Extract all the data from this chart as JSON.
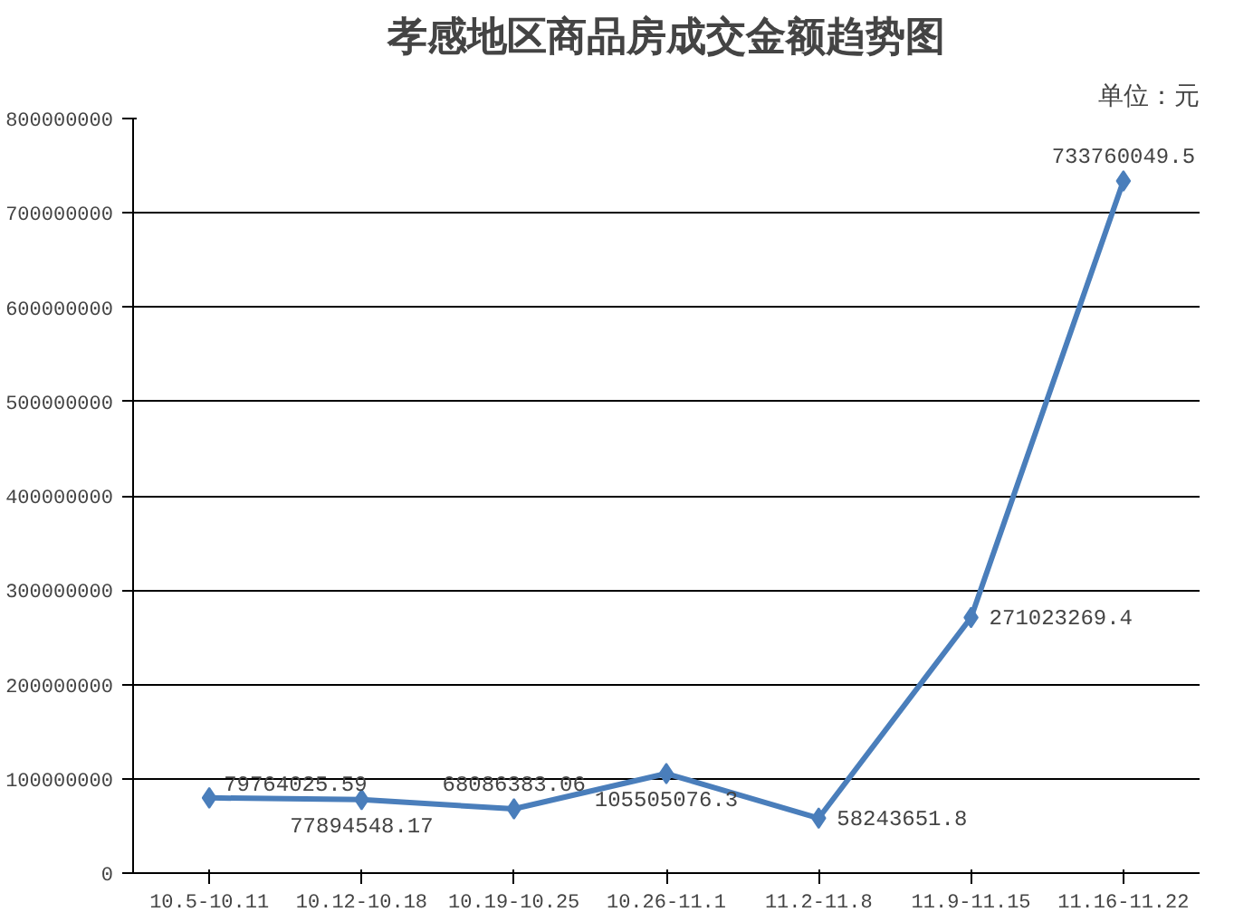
{
  "chart_data": {
    "type": "line",
    "title": "孝感地区商品房成交金额趋势图",
    "annotations": [
      "单位：元"
    ],
    "categories": [
      "10.5-10.11",
      "10.12-10.18",
      "10.19-10.25",
      "10.26-11.1",
      "11.2-11.8",
      "11.9-11.15",
      "11.16-11.22"
    ],
    "series": [
      {
        "color": "#4a7ebb",
        "values": [
          79764025.59,
          77894548.17,
          68086383.06,
          105505076.3,
          58243651.8,
          271023269.4,
          733760049.5
        ]
      }
    ],
    "ylim": [
      0,
      800000000
    ],
    "yticks": [
      0,
      100000000,
      200000000,
      300000000,
      400000000,
      500000000,
      600000000,
      700000000,
      800000000
    ],
    "grid": "y",
    "marker": "diamond",
    "line_style": "solid",
    "data_labels": true
  }
}
